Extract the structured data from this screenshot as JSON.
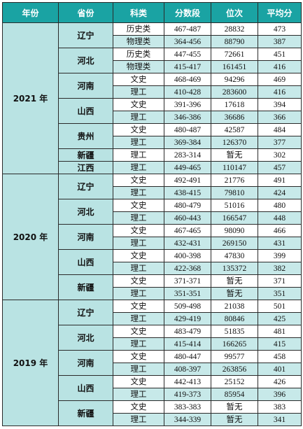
{
  "headers": [
    "年份",
    "省份",
    "科类",
    "分数段",
    "位次",
    "平均分"
  ],
  "years": [
    {
      "year": "2021 年",
      "provinces": [
        {
          "name": "辽宁",
          "rows": [
            {
              "subject": "历史类",
              "range": "467-487",
              "rank": "28832",
              "avg": "473"
            },
            {
              "subject": "物理类",
              "range": "364-456",
              "rank": "88790",
              "avg": "387"
            }
          ]
        },
        {
          "name": "河北",
          "rows": [
            {
              "subject": "历史类",
              "range": "447-455",
              "rank": "72661",
              "avg": "451"
            },
            {
              "subject": "物理类",
              "range": "415-417",
              "rank": "161451",
              "avg": "416"
            }
          ]
        },
        {
          "name": "河南",
          "rows": [
            {
              "subject": "文史",
              "range": "468-469",
              "rank": "94296",
              "avg": "469"
            },
            {
              "subject": "理工",
              "range": "410-428",
              "rank": "283600",
              "avg": "416"
            }
          ]
        },
        {
          "name": "山西",
          "rows": [
            {
              "subject": "文史",
              "range": "391-396",
              "rank": "17618",
              "avg": "394"
            },
            {
              "subject": "理工",
              "range": "346-386",
              "rank": "36686",
              "avg": "366"
            }
          ]
        },
        {
          "name": "贵州",
          "rows": [
            {
              "subject": "文史",
              "range": "480-487",
              "rank": "42587",
              "avg": "484"
            },
            {
              "subject": "理工",
              "range": "369-384",
              "rank": "126370",
              "avg": "377"
            }
          ]
        },
        {
          "name": "新疆",
          "rows": [
            {
              "subject": "理工",
              "range": "283-314",
              "rank": "暂无",
              "avg": "302"
            }
          ]
        },
        {
          "name": "江西",
          "rows": [
            {
              "subject": "理工",
              "range": "449-465",
              "rank": "110147",
              "avg": "457"
            }
          ]
        }
      ]
    },
    {
      "year": "2020 年",
      "provinces": [
        {
          "name": "辽宁",
          "rows": [
            {
              "subject": "文史",
              "range": "492-491",
              "rank": "21776",
              "avg": "491"
            },
            {
              "subject": "理工",
              "range": "438-415",
              "rank": "79810",
              "avg": "424"
            }
          ]
        },
        {
          "name": "河北",
          "rows": [
            {
              "subject": "文史",
              "range": "480-479",
              "rank": "51016",
              "avg": "480"
            },
            {
              "subject": "理工",
              "range": "460-443",
              "rank": "166547",
              "avg": "448"
            }
          ]
        },
        {
          "name": "河南",
          "rows": [
            {
              "subject": "文史",
              "range": "467-465",
              "rank": "98090",
              "avg": "466"
            },
            {
              "subject": "理工",
              "range": "432-431",
              "rank": "269150",
              "avg": "431"
            }
          ]
        },
        {
          "name": "山西",
          "rows": [
            {
              "subject": "文史",
              "range": "400-398",
              "rank": "47830",
              "avg": "399"
            },
            {
              "subject": "理工",
              "range": "422-368",
              "rank": "135372",
              "avg": "382"
            }
          ]
        },
        {
          "name": "新疆",
          "rows": [
            {
              "subject": "文史",
              "range": "371-371",
              "rank": "暂无",
              "avg": "371"
            },
            {
              "subject": "理工",
              "range": "351-351",
              "rank": "暂无",
              "avg": "351"
            }
          ]
        }
      ]
    },
    {
      "year": "2019 年",
      "provinces": [
        {
          "name": "辽宁",
          "rows": [
            {
              "subject": "文史",
              "range": "509-498",
              "rank": "21038",
              "avg": "501"
            },
            {
              "subject": "理工",
              "range": "429-419",
              "rank": "80846",
              "avg": "425"
            }
          ]
        },
        {
          "name": "河北",
          "rows": [
            {
              "subject": "文史",
              "range": "483-479",
              "rank": "51835",
              "avg": "481"
            },
            {
              "subject": "理工",
              "range": "415-414",
              "rank": "166265",
              "avg": "415"
            }
          ]
        },
        {
          "name": "河南",
          "rows": [
            {
              "subject": "文史",
              "range": "480-447",
              "rank": "99577",
              "avg": "458"
            },
            {
              "subject": "理工",
              "range": "408-397",
              "rank": "263856",
              "avg": "401"
            }
          ]
        },
        {
          "name": "山西",
          "rows": [
            {
              "subject": "文史",
              "range": "442-413",
              "rank": "25152",
              "avg": "426"
            },
            {
              "subject": "理工",
              "range": "419-373",
              "rank": "85954",
              "avg": "396"
            }
          ]
        },
        {
          "name": "新疆",
          "rows": [
            {
              "subject": "文史",
              "range": "383-383",
              "rank": "暂无",
              "avg": "383"
            },
            {
              "subject": "理工",
              "range": "344-339",
              "rank": "暂无",
              "avg": "341"
            }
          ]
        }
      ]
    }
  ]
}
